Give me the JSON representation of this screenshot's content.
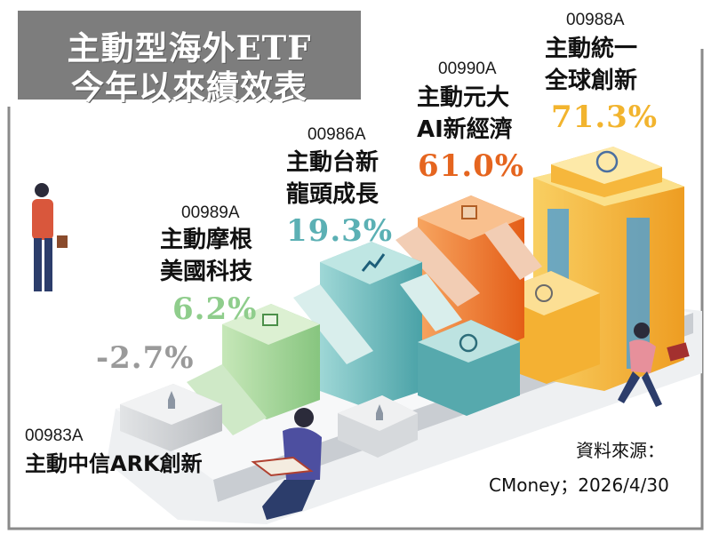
{
  "title": {
    "line1": "主動型海外ETF",
    "line2": "今年以來績效表"
  },
  "chart_data": {
    "type": "bar",
    "unit": "%",
    "items": [
      {
        "code": "00983A",
        "name": "主動中信ARK創新",
        "value": -2.7,
        "label": "-2.7%",
        "color": "#a6a6a6"
      },
      {
        "code": "00989A",
        "name_line1": "主動摩根",
        "name_line2": "美國科技",
        "value": 6.2,
        "label": "6.2%",
        "color": "#8fcd8c"
      },
      {
        "code": "00986A",
        "name_line1": "主動台新",
        "name_line2": "龍頭成長",
        "value": 19.3,
        "label": "19.3%",
        "color": "#5bb0b4"
      },
      {
        "code": "00990A",
        "name_line1": "主動元大",
        "name_line2": "AI新經濟",
        "value": 61.0,
        "label": "61.0%",
        "color": "#e8651f"
      },
      {
        "code": "00988A",
        "name_line1": "主動統一",
        "name_line2": "全球創新",
        "value": 71.3,
        "label": "71.3%",
        "color": "#f0a92c"
      }
    ]
  },
  "source": {
    "line1": "資料來源：",
    "line2": "CMoney；2026/4/30"
  }
}
